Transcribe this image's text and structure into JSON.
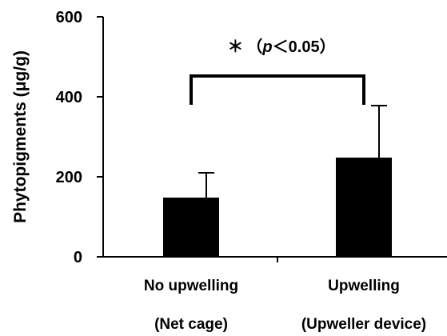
{
  "chart_data": {
    "type": "bar",
    "ylabel": "Phytopigments (μg/g)",
    "ylim": [
      0,
      600
    ],
    "yticks": [
      "0",
      "200",
      "400",
      "600"
    ],
    "categories": [
      {
        "line1": "No upwelling",
        "line2": "(Net cage)"
      },
      {
        "line1": "Upwelling",
        "line2": "(Upweller device)"
      }
    ],
    "values": [
      148,
      248
    ],
    "error_upper": [
      210,
      378
    ],
    "significance": {
      "label": "＊（p＜0.05）",
      "parts": {
        "star": "＊",
        "open": "（",
        "p": "p",
        "lt": "＜",
        "value": "0.05",
        "close": "）"
      },
      "bracket_level": 452,
      "between": [
        0,
        1
      ]
    },
    "colors": {
      "bar": "#000000",
      "axis": "#000000"
    },
    "grid": false
  }
}
